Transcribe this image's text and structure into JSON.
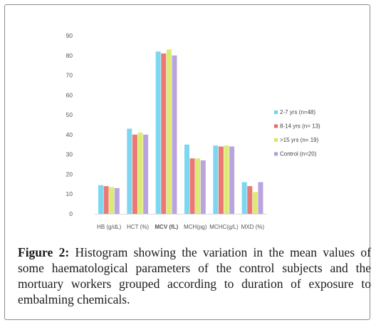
{
  "chart_data": {
    "type": "bar",
    "categories": [
      "HB (g/dL)",
      "HCT (%)",
      "MCV (fL)",
      "MCH(pg)",
      "MCHC(g/L)",
      "MXD (%)"
    ],
    "series": [
      {
        "name": "2-7 yrs (n=48)",
        "color": "#6fd3ee",
        "values": [
          14.5,
          43,
          82,
          35,
          34.5,
          16
        ]
      },
      {
        "name": "8-14 yrs (n= 13)",
        "color": "#e96a64",
        "values": [
          14,
          40,
          81,
          28,
          34,
          14
        ]
      },
      {
        "name": ">15 yrs (n= 19)",
        "color": "#d9e864",
        "values": [
          13.5,
          41,
          83,
          28,
          34.5,
          11
        ]
      },
      {
        "name": "Control (n=20)",
        "color": "#b39ad9",
        "values": [
          13,
          40,
          80,
          27,
          34,
          16
        ]
      }
    ],
    "yticks": [
      0,
      10,
      20,
      30,
      40,
      50,
      60,
      70,
      80,
      90
    ],
    "ylim": [
      0,
      90
    ],
    "grid": false,
    "legend_position": "right"
  },
  "caption": {
    "label": "Figure 2:",
    "text": " Histogram showing the variation in the mean values of some haematological parameters of the control subjects and the mortuary workers grouped according to duration of exposure to embalming chemicals."
  }
}
